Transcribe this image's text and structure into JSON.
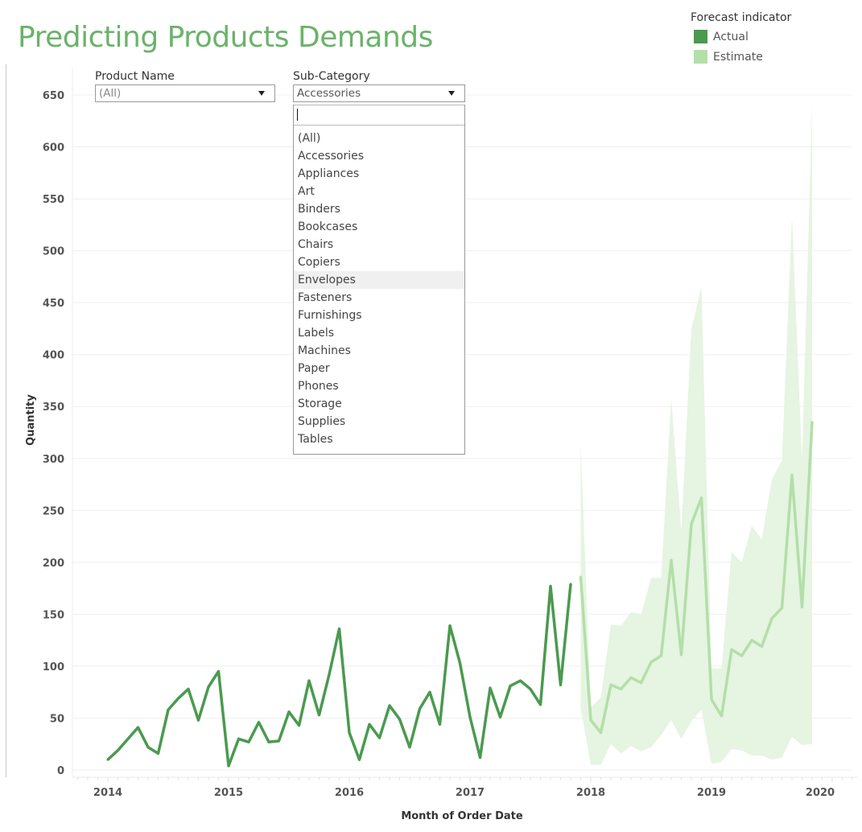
{
  "title": "Predicting Products Demands",
  "legend": {
    "title": "Forecast indicator",
    "items": [
      {
        "label": "Actual",
        "color": "#4a9a4f"
      },
      {
        "label": "Estimate",
        "color": "#b3dfa8"
      }
    ]
  },
  "filters": {
    "product_name": {
      "label": "Product Name",
      "value": "(All)"
    },
    "sub_category": {
      "label": "Sub-Category",
      "value": "Accessories",
      "search_value": "",
      "hovered": "Envelopes",
      "options": [
        "(All)",
        "Accessories",
        "Appliances",
        "Art",
        "Binders",
        "Bookcases",
        "Chairs",
        "Copiers",
        "Envelopes",
        "Fasteners",
        "Furnishings",
        "Labels",
        "Machines",
        "Paper",
        "Phones",
        "Storage",
        "Supplies",
        "Tables"
      ]
    }
  },
  "chart_data": {
    "type": "line",
    "title": "Predicting Products Demands",
    "xlabel": "Month of Order Date",
    "ylabel": "Quantity",
    "ylim": [
      0,
      650
    ],
    "yticks": [
      0,
      50,
      100,
      150,
      200,
      250,
      300,
      350,
      400,
      450,
      500,
      550,
      600,
      650
    ],
    "xticks": [
      "2014",
      "2015",
      "2016",
      "2017",
      "2018",
      "2019",
      "2020"
    ],
    "xrange": [
      "2014-01",
      "2020-01"
    ],
    "grid": true,
    "legend_position": "top-right",
    "series": [
      {
        "name": "Actual",
        "color": "#4a9a4f",
        "start": "2014-01",
        "values": [
          10,
          19,
          30,
          41,
          22,
          16,
          58,
          69,
          78,
          48,
          80,
          95,
          4,
          30,
          27,
          46,
          27,
          28,
          56,
          43,
          86,
          53,
          92,
          136,
          36,
          10,
          44,
          31,
          62,
          49,
          22,
          59,
          75,
          44,
          139,
          103,
          51,
          12,
          79,
          51,
          81,
          86,
          78,
          63,
          177,
          82,
          179
        ]
      },
      {
        "name": "Estimate",
        "color": "#b3dfa8",
        "start": "2017-12",
        "values": [
          186,
          48,
          36,
          82,
          78,
          89,
          84,
          104,
          110,
          202,
          111,
          237,
          262,
          68,
          52,
          116,
          110,
          125,
          119,
          146,
          156,
          284,
          157,
          335
        ],
        "upper": [
          315,
          60,
          70,
          140,
          139,
          152,
          150,
          185,
          185,
          358,
          230,
          425,
          465,
          98,
          98,
          210,
          200,
          235,
          222,
          280,
          298,
          533,
          298,
          640
        ],
        "lower": [
          60,
          5,
          5,
          25,
          16,
          23,
          18,
          22,
          34,
          48,
          30,
          47,
          58,
          6,
          8,
          20,
          19,
          14,
          14,
          10,
          12,
          32,
          24,
          25
        ],
        "band_color": "#e6f4e2"
      }
    ]
  }
}
